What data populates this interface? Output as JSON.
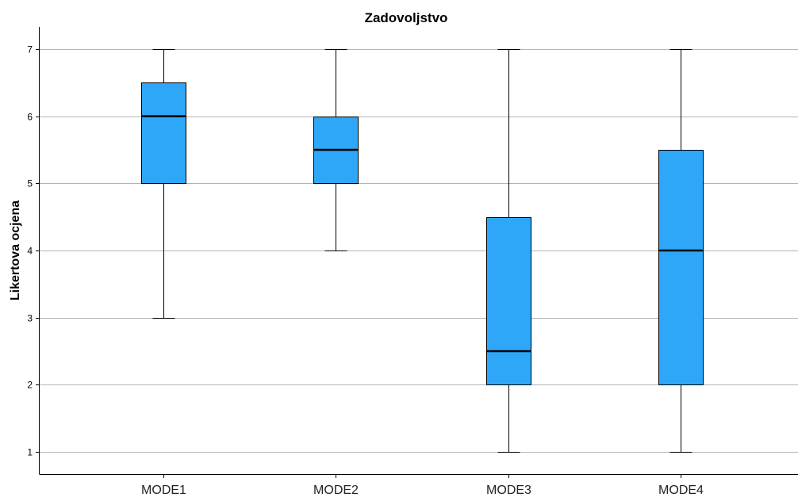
{
  "chart_data": {
    "type": "boxplot",
    "title": "Zadovoljstvo",
    "ylabel": "Likertova ocjena",
    "xlabel": "",
    "ylim": [
      0.67,
      7.33
    ],
    "yticks": [
      1,
      2,
      3,
      4,
      5,
      6,
      7
    ],
    "grid": true,
    "colors": {
      "box": "#2ea7f8",
      "grid": "#b4b4b4",
      "line": "#000000"
    },
    "categories": [
      "MODE1",
      "MODE2",
      "MODE3",
      "MODE4"
    ],
    "boxes": [
      {
        "min": 3,
        "q1": 5,
        "median": 6,
        "q3": 6.5,
        "max": 7
      },
      {
        "min": 4,
        "q1": 5,
        "median": 5.5,
        "q3": 6,
        "max": 7
      },
      {
        "min": 1,
        "q1": 2,
        "median": 2.5,
        "q3": 4.5,
        "max": 7
      },
      {
        "min": 1,
        "q1": 2,
        "median": 4,
        "q3": 5.5,
        "max": 7
      }
    ]
  }
}
